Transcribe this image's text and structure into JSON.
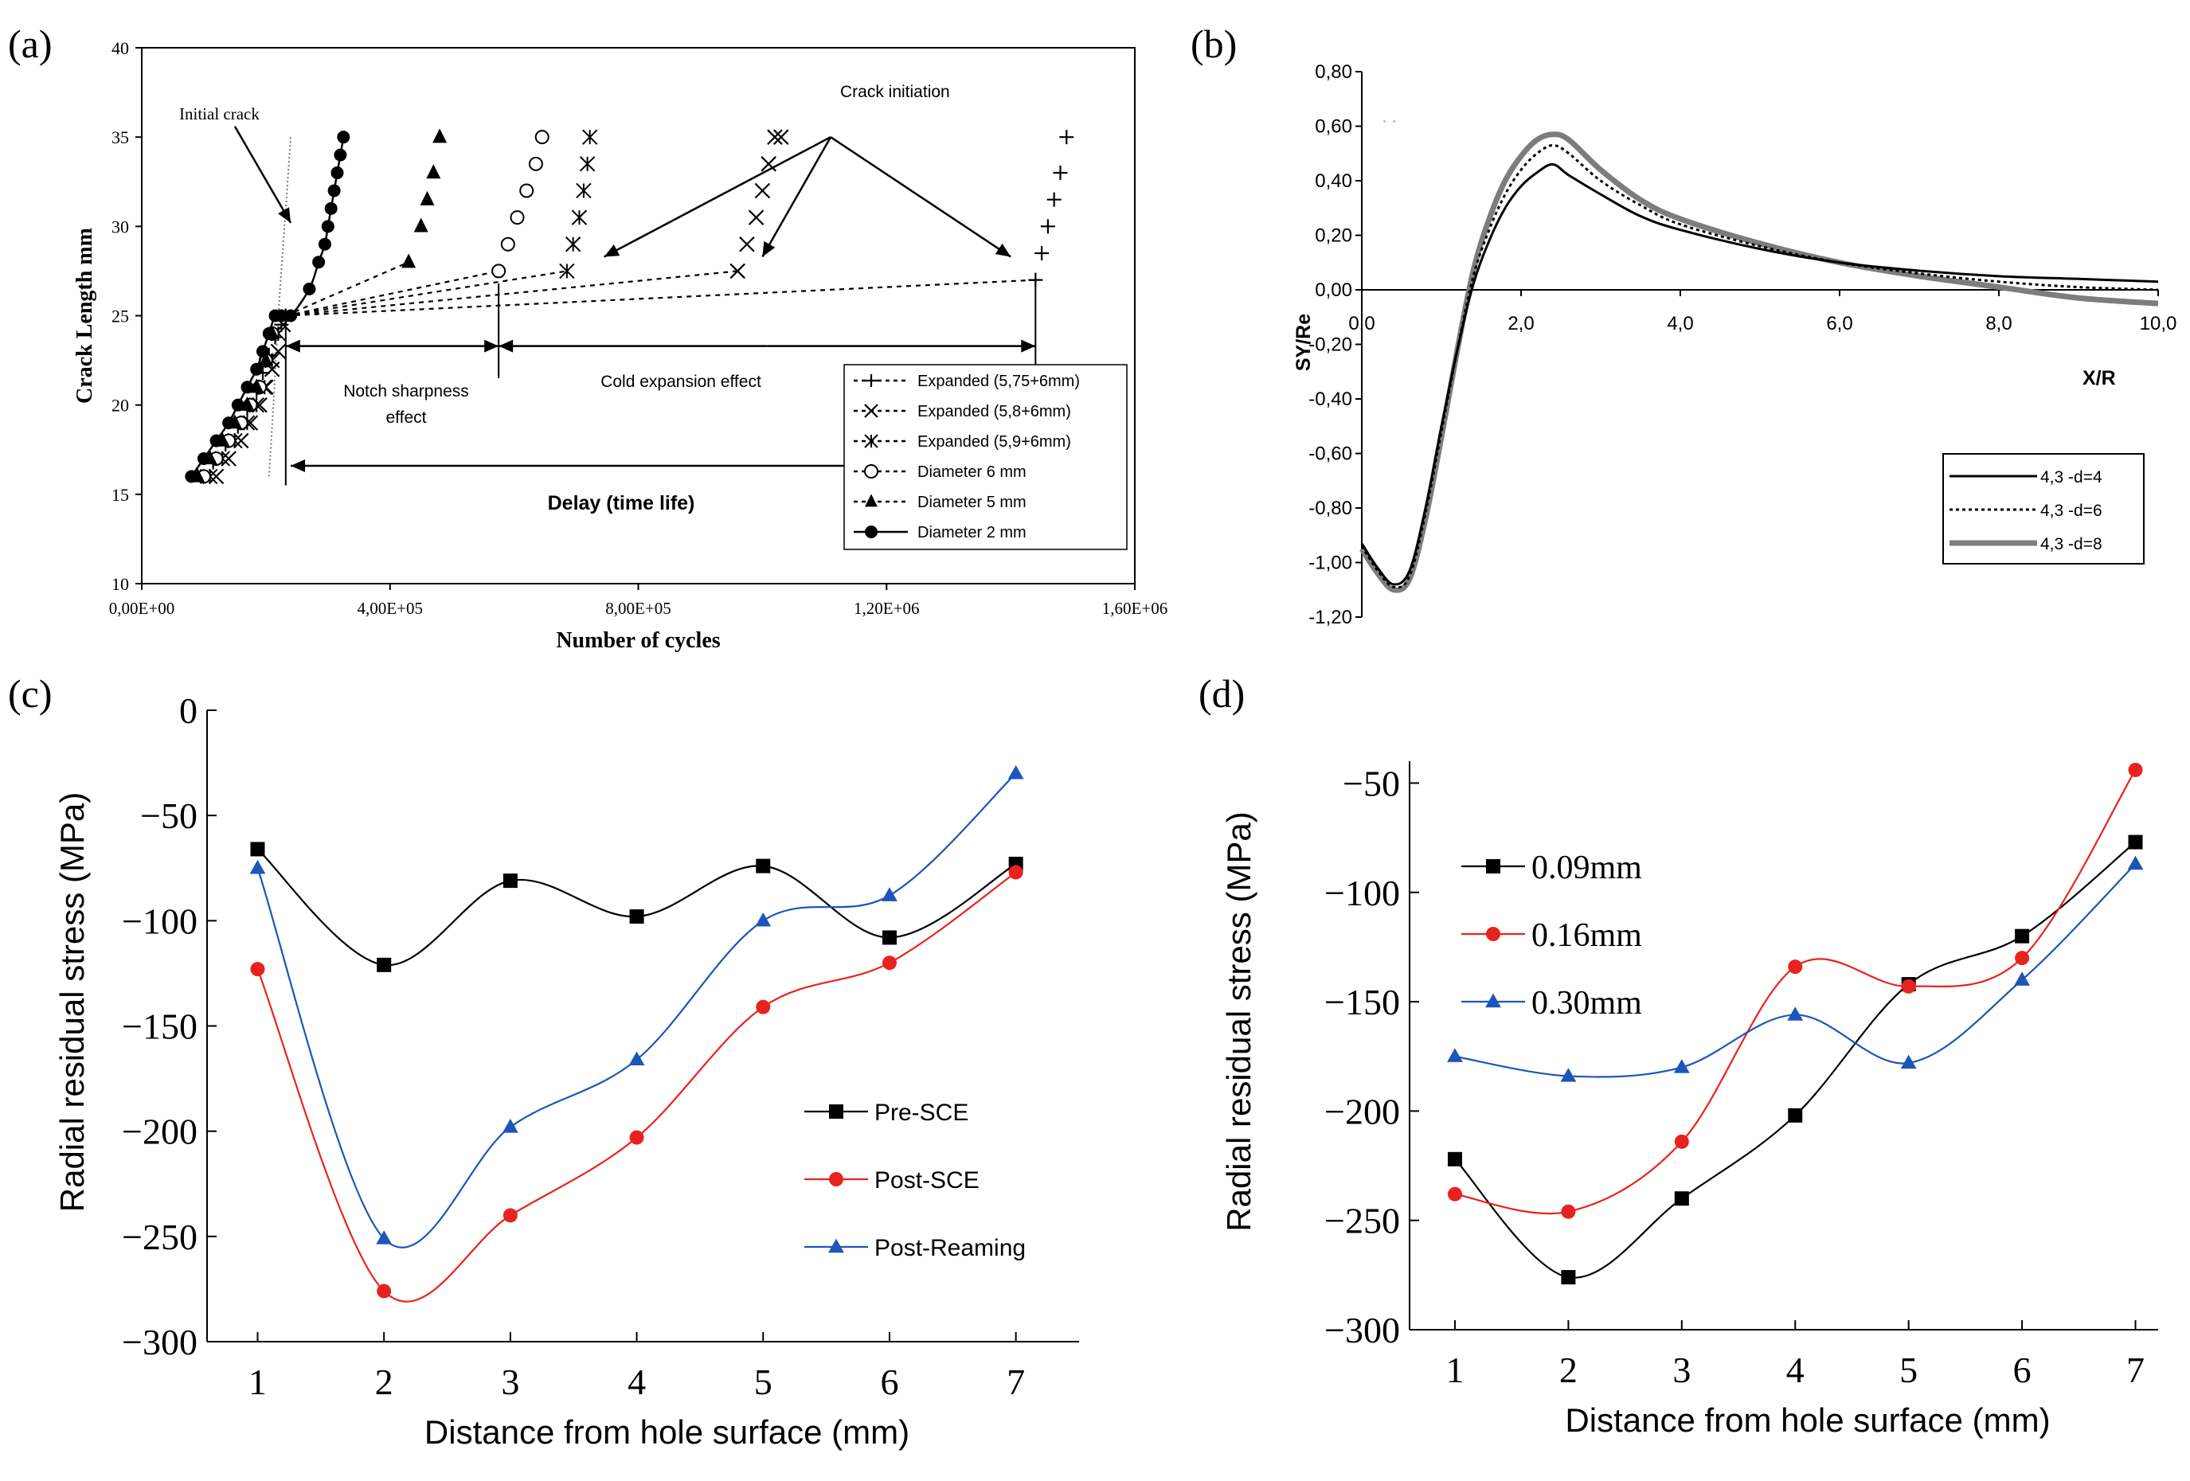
{
  "chart_data": [
    {
      "panel": "(a)",
      "type": "scatter",
      "xlabel": "Number of cycles",
      "ylabel": "Crack Length mm",
      "xlim": [
        0,
        1600000
      ],
      "ylim": [
        10,
        40
      ],
      "x_ticks": [
        0,
        400000,
        800000,
        1200000,
        1600000
      ],
      "x_tick_labels": [
        "0,00E+00",
        "4,00E+05",
        "8,00E+05",
        "1,20E+06",
        "1,60E+06"
      ],
      "y_ticks": [
        10,
        15,
        20,
        25,
        30,
        35,
        40
      ],
      "y_tick_labels": [
        "10",
        "15",
        "20",
        "25",
        "30",
        "35",
        "40"
      ],
      "legend_position": "bottom-right",
      "series": [
        {
          "name": "Expanded (5,75+6mm)",
          "marker": "plus",
          "line": "dotted",
          "x": [
            95000,
            115000,
            135000,
            155000,
            170000,
            185000,
            195000,
            205000,
            215000,
            225000,
            232000,
            1440000,
            1450000,
            1460000,
            1470000,
            1480000,
            1490000
          ],
          "y": [
            16,
            16.8,
            17.8,
            18.8,
            19.8,
            20.8,
            21.8,
            22.8,
            23.8,
            24.5,
            25,
            27,
            28.5,
            30,
            31.5,
            33,
            35
          ]
        },
        {
          "name": "Expanded (5,8+6mm)",
          "marker": "cross",
          "line": "dotted",
          "x": [
            120000,
            140000,
            160000,
            175000,
            190000,
            200000,
            210000,
            220000,
            228000,
            960000,
            975000,
            990000,
            1000000,
            1010000,
            1020000,
            1030000
          ],
          "y": [
            16,
            17,
            18,
            19,
            20,
            21,
            22,
            23,
            24.5,
            27.5,
            29,
            30.5,
            32,
            33.5,
            35,
            35
          ]
        },
        {
          "name": "Expanded (5,9+6mm)",
          "marker": "asterisk",
          "line": "dotted",
          "x": [
            110000,
            130000,
            150000,
            170000,
            185000,
            198000,
            210000,
            220000,
            685000,
            695000,
            705000,
            712000,
            718000,
            722000
          ],
          "y": [
            16,
            17,
            18,
            19,
            20,
            21,
            22.5,
            24,
            27.5,
            29,
            30.5,
            32,
            33.5,
            35
          ]
        },
        {
          "name": "Diameter 6 mm",
          "marker": "circle-open",
          "line": "dotted",
          "x": [
            100000,
            120000,
            140000,
            160000,
            175000,
            190000,
            200000,
            210000,
            575000,
            590000,
            605000,
            620000,
            635000,
            645000
          ],
          "y": [
            16,
            17,
            18,
            19,
            20,
            21,
            22.5,
            24,
            27.5,
            29,
            30.5,
            32,
            33.5,
            35
          ]
        },
        {
          "name": "Diameter 5 mm",
          "marker": "triangle-filled",
          "line": "dotted",
          "x": [
            90000,
            110000,
            130000,
            150000,
            170000,
            185000,
            200000,
            210000,
            430000,
            450000,
            460000,
            470000,
            480000
          ],
          "y": [
            16,
            17,
            18,
            19,
            20,
            21,
            22.5,
            24,
            28,
            30,
            31.5,
            33,
            35
          ]
        },
        {
          "name": "Diameter 2 mm",
          "marker": "circle-filled",
          "line": "solid",
          "x": [
            80000,
            100000,
            120000,
            140000,
            155000,
            170000,
            185000,
            195000,
            205000,
            215000,
            225000,
            240000,
            270000,
            285000,
            295000,
            300000,
            305000,
            310000,
            315000,
            320000,
            325000
          ],
          "y": [
            16,
            17,
            18,
            19,
            20,
            21,
            22,
            23,
            24,
            25,
            25,
            25,
            26.5,
            28,
            29,
            30,
            31,
            32,
            33,
            34,
            35
          ]
        }
      ],
      "annotations": [
        "Initial crack",
        "Crack initiation",
        "Notch sharpness effect",
        "Cold expansion effect",
        "Delay (time life)"
      ]
    },
    {
      "panel": "(b)",
      "type": "line",
      "xlabel": "X/R",
      "ylabel": "SY/Re",
      "xlim": [
        0,
        10
      ],
      "ylim": [
        -1.2,
        0.8
      ],
      "x_ticks": [
        0,
        2,
        4,
        6,
        8,
        10
      ],
      "x_tick_labels": [
        "0,0",
        "2,0",
        "4,0",
        "6,0",
        "8,0",
        "10,0"
      ],
      "y_ticks": [
        0.8,
        0.6,
        0.4,
        0.2,
        0,
        -0.2,
        -0.4,
        -0.6,
        -0.8,
        -1.0,
        -1.2
      ],
      "y_tick_labels": [
        "0,80",
        "0,60",
        "0,40",
        "0,20",
        "0,00",
        "-0,20",
        "-0,40",
        "-0,60",
        "-0,80",
        "-1,00",
        "-1,20"
      ],
      "legend_position": "bottom-right",
      "series": [
        {
          "name": "4,3 -d=4",
          "style": "solid",
          "x": [
            0,
            0.2,
            0.4,
            0.6,
            0.8,
            1.0,
            1.2,
            1.4,
            1.6,
            1.8,
            2.0,
            2.2,
            2.4,
            2.6,
            3.0,
            3.5,
            4.0,
            5.0,
            6.0,
            7.0,
            8.0,
            9.0,
            10.0
          ],
          "y": [
            -0.93,
            -1.02,
            -1.08,
            -1.03,
            -0.8,
            -0.5,
            -0.22,
            0.02,
            0.18,
            0.3,
            0.38,
            0.43,
            0.46,
            0.42,
            0.35,
            0.27,
            0.22,
            0.15,
            0.1,
            0.07,
            0.05,
            0.04,
            0.03
          ]
        },
        {
          "name": "4,3 -d=6",
          "style": "dotted",
          "x": [
            0,
            0.2,
            0.4,
            0.6,
            0.8,
            1.0,
            1.2,
            1.4,
            1.6,
            1.8,
            2.0,
            2.2,
            2.4,
            2.6,
            3.0,
            3.5,
            4.0,
            5.0,
            6.0,
            7.0,
            8.0,
            9.0,
            10.0
          ],
          "y": [
            -0.94,
            -1.03,
            -1.09,
            -1.05,
            -0.82,
            -0.52,
            -0.22,
            0.05,
            0.22,
            0.35,
            0.44,
            0.5,
            0.53,
            0.5,
            0.4,
            0.31,
            0.24,
            0.16,
            0.1,
            0.06,
            0.03,
            0.01,
            0.0
          ]
        },
        {
          "name": "4,3 -d=8",
          "style": "thick-grey",
          "x": [
            0,
            0.2,
            0.4,
            0.6,
            0.8,
            1.0,
            1.2,
            1.4,
            1.6,
            1.8,
            2.0,
            2.2,
            2.4,
            2.6,
            3.0,
            3.5,
            4.0,
            5.0,
            6.0,
            7.0,
            8.0,
            9.0,
            10.0
          ],
          "y": [
            -0.95,
            -1.04,
            -1.1,
            -1.06,
            -0.84,
            -0.54,
            -0.22,
            0.07,
            0.26,
            0.4,
            0.49,
            0.55,
            0.57,
            0.55,
            0.44,
            0.33,
            0.26,
            0.17,
            0.1,
            0.05,
            0.01,
            -0.03,
            -0.05
          ]
        }
      ],
      "annotations": [
        "· ·"
      ]
    },
    {
      "panel": "(c)",
      "type": "line",
      "xlabel": "Distance from hole surface (mm)",
      "ylabel": "Radial residual stress (MPa)",
      "xlim": [
        0.6,
        7.5
      ],
      "ylim": [
        -300,
        0
      ],
      "x_ticks": [
        1,
        2,
        3,
        4,
        5,
        6,
        7
      ],
      "y_ticks": [
        0,
        -50,
        -100,
        -150,
        -200,
        -250,
        -300
      ],
      "legend_position": "middle-right",
      "categories": [
        1,
        2,
        3,
        4,
        5,
        6,
        7
      ],
      "series": [
        {
          "name": "Pre-SCE",
          "marker": "square",
          "color": "#000000",
          "values": [
            -66,
            -121,
            -81,
            -98,
            -74,
            -108,
            -73
          ]
        },
        {
          "name": "Post-SCE",
          "marker": "circle",
          "color": "#e8231f",
          "values": [
            -123,
            -276,
            -240,
            -203,
            -141,
            -120,
            -77
          ]
        },
        {
          "name": "Post-Reaming",
          "marker": "triangle",
          "color": "#1c56b8",
          "values": [
            -75,
            -251,
            -198,
            -166,
            -100,
            -88,
            -30
          ]
        }
      ]
    },
    {
      "panel": "(d)",
      "type": "line",
      "xlabel": "Distance from hole surface (mm)",
      "ylabel": "Radial residual stress (MPa)",
      "xlim": [
        0.6,
        7.2
      ],
      "ylim": [
        -300,
        -40
      ],
      "x_ticks": [
        1,
        2,
        3,
        4,
        5,
        6,
        7
      ],
      "y_ticks": [
        -50,
        -100,
        -150,
        -200,
        -250,
        -300
      ],
      "legend_position": "top-left",
      "categories": [
        1,
        2,
        3,
        4,
        5,
        6,
        7
      ],
      "series": [
        {
          "name": "0.09mm",
          "marker": "square",
          "color": "#000000",
          "values": [
            -222,
            -276,
            -240,
            -202,
            -142,
            -120,
            -77
          ]
        },
        {
          "name": "0.16mm",
          "marker": "circle",
          "color": "#e8231f",
          "values": [
            -238,
            -246,
            -214,
            -134,
            -143,
            -130,
            -44
          ]
        },
        {
          "name": "0.30mm",
          "marker": "triangle",
          "color": "#1c56b8",
          "values": [
            -175,
            -184,
            -180,
            -156,
            -178,
            -140,
            -87
          ]
        }
      ]
    }
  ],
  "labels": {
    "a": "(a)",
    "b": "(b)",
    "c": "(c)",
    "d": "(d)"
  },
  "colors": {
    "black": "#000000",
    "red": "#e8231f",
    "blue": "#1c56b8",
    "grey": "#8a8a8a"
  }
}
